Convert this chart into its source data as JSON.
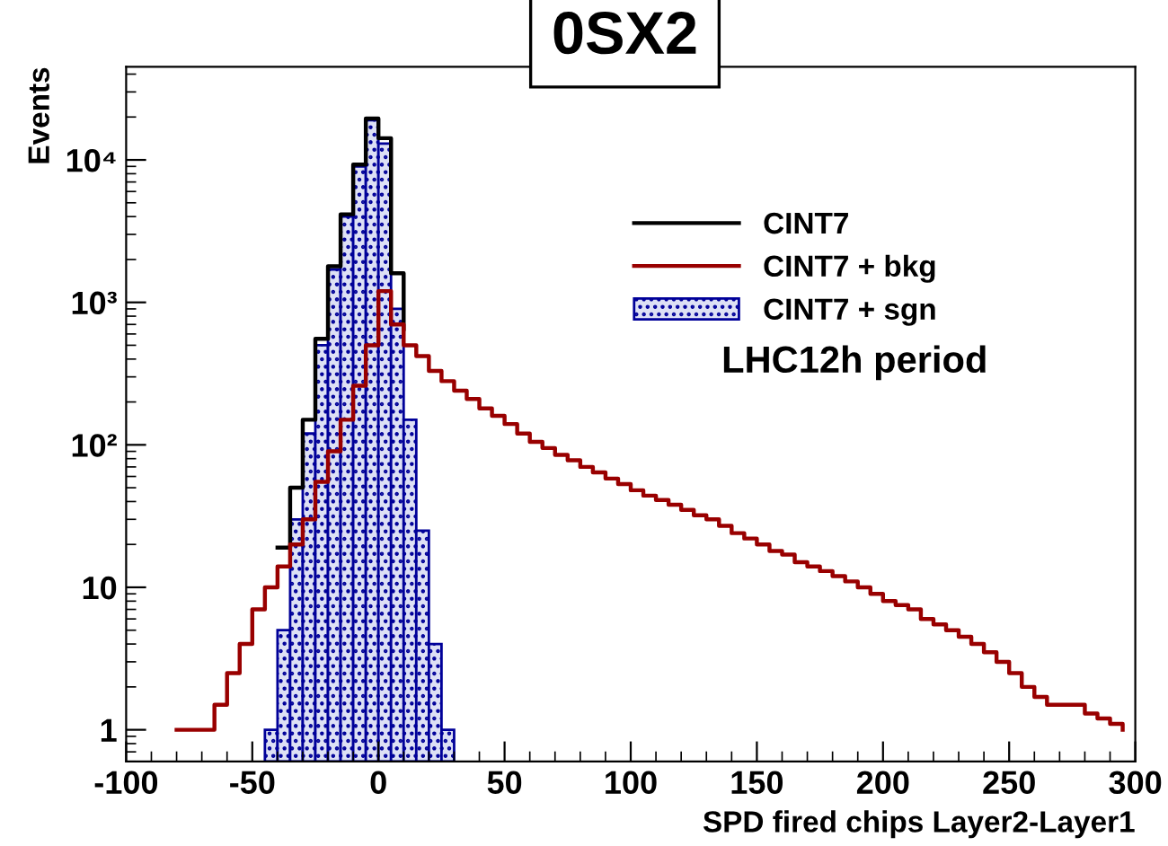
{
  "chart_data": {
    "type": "histogram",
    "title": "0SX2",
    "xlabel": "SPD fired chips Layer2-Layer1",
    "ylabel": "Events",
    "annotations": [
      "LHC12h period"
    ],
    "bins": [
      -100,
      -95,
      -90,
      -85,
      -80,
      -75,
      -70,
      -65,
      -60,
      -55,
      -50,
      -45,
      -40,
      -35,
      -30,
      -25,
      -20,
      -15,
      -10,
      -5,
      0,
      5,
      10,
      15,
      20,
      25,
      30,
      35,
      40,
      45,
      50,
      55,
      60,
      65,
      70,
      75,
      80,
      85,
      90,
      95,
      100,
      105,
      110,
      115,
      120,
      125,
      130,
      135,
      140,
      145,
      150,
      155,
      160,
      165,
      170,
      175,
      180,
      185,
      190,
      195,
      200,
      205,
      210,
      215,
      220,
      225,
      230,
      235,
      240,
      245,
      250,
      255,
      260,
      265,
      270,
      275,
      280,
      285,
      290,
      295,
      300
    ],
    "series": [
      {
        "name": "CINT7",
        "type": "step",
        "color": "#000000",
        "x": [
          -40,
          -35,
          -30,
          -25,
          -20,
          -15,
          -10,
          -5,
          0,
          5,
          10
        ],
        "values": [
          19,
          50,
          150,
          555,
          1790,
          4150,
          9260,
          19500,
          14200,
          1600,
          650
        ]
      },
      {
        "name": "CINT7 + bkg",
        "type": "step",
        "color": "#990000",
        "x": [
          -80,
          -75,
          -70,
          -65,
          -60,
          -55,
          -50,
          -45,
          -40,
          -35,
          -30,
          -25,
          -20,
          -15,
          -10,
          -5,
          0,
          5,
          10,
          15,
          20,
          25,
          30,
          35,
          40,
          45,
          50,
          55,
          60,
          65,
          70,
          75,
          80,
          85,
          90,
          95,
          100,
          105,
          110,
          115,
          120,
          125,
          130,
          135,
          140,
          145,
          150,
          155,
          160,
          165,
          170,
          175,
          180,
          185,
          190,
          195,
          200,
          205,
          210,
          215,
          220,
          225,
          230,
          235,
          240,
          245,
          250,
          255,
          260,
          265,
          270,
          275,
          280,
          285,
          290,
          295
        ],
        "values": [
          1,
          1,
          1,
          1.5,
          2.5,
          4,
          7,
          10,
          14,
          20,
          30,
          55,
          90,
          150,
          260,
          500,
          1200,
          700,
          500,
          420,
          330,
          280,
          240,
          210,
          180,
          160,
          140,
          120,
          105,
          95,
          85,
          78,
          70,
          64,
          58,
          53,
          48,
          44,
          41,
          38,
          35,
          32,
          30,
          27,
          24,
          22,
          20,
          18,
          17,
          15,
          14,
          13,
          12,
          11,
          10,
          9,
          8,
          7.5,
          7,
          6,
          5.5,
          5,
          4.5,
          4,
          3.5,
          3,
          2.5,
          2,
          1.7,
          1.5,
          1.5,
          1.5,
          1.3,
          1.2,
          1.1,
          1
        ]
      },
      {
        "name": "CINT7 + sgn",
        "color": "#000099",
        "values": [
          null,
          null,
          null,
          null,
          null,
          null,
          null,
          null,
          null,
          null,
          null,
          1,
          5,
          30,
          120,
          500,
          1700,
          4000,
          9000,
          19000,
          13000,
          900,
          150,
          25,
          4,
          1,
          null,
          null,
          null,
          null,
          null,
          null,
          null,
          null,
          null,
          null,
          null,
          null,
          null,
          null,
          null,
          null,
          null,
          null,
          null,
          null,
          null,
          null,
          null,
          null,
          null,
          null,
          null,
          null,
          null,
          null,
          null,
          null,
          null,
          null,
          null,
          null,
          null,
          null,
          null,
          null,
          null,
          null,
          null,
          null,
          null,
          null,
          null,
          null,
          null,
          null,
          null,
          null,
          null,
          null
        ]
      }
    ],
    "log": "y",
    "xlim": [
      -100,
      300
    ],
    "ylim": [
      0.6,
      45000
    ],
    "xticks": [
      -100,
      -50,
      0,
      50,
      100,
      150,
      200,
      250,
      300
    ],
    "yticks": [
      1,
      10,
      {
        "value": 100,
        "label": "10²"
      },
      {
        "value": 1000,
        "label": "10³"
      },
      {
        "value": 10000,
        "label": "10⁴"
      }
    ],
    "grid": false,
    "legend": "top right"
  }
}
